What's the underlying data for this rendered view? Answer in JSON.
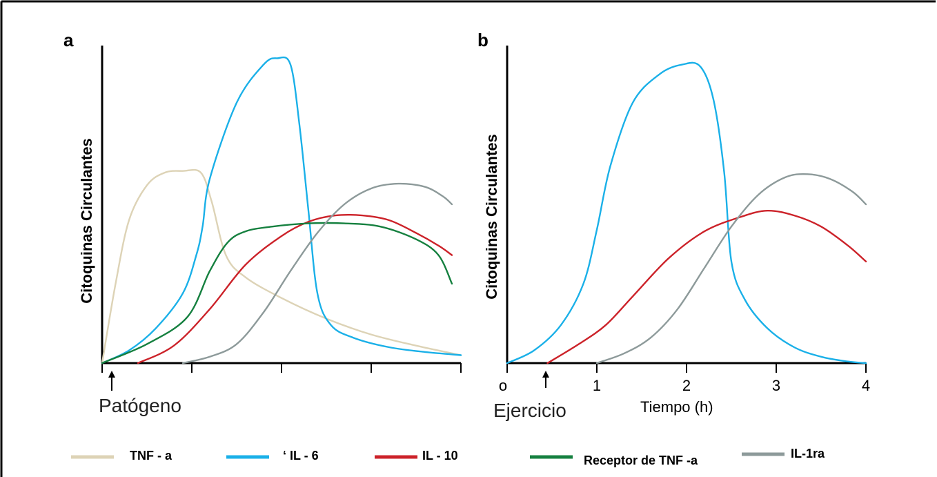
{
  "colors": {
    "TNF": "#ddd3b6",
    "IL6": "#1ab0e8",
    "IL10": "#cc2229",
    "TNFR": "#15803f",
    "IL1ra": "#8d9a9a"
  },
  "legend": [
    {
      "key": "TNF",
      "label": "TNF - a"
    },
    {
      "key": "IL6",
      "label": "‘ IL - 6"
    },
    {
      "key": "IL10",
      "label": "IL - 10"
    },
    {
      "key": "TNFR",
      "label": "Receptor de TNF -a"
    },
    {
      "key": "IL1ra",
      "label": "IL-1ra"
    }
  ],
  "chart_data": [
    {
      "type": "line",
      "panel": "a",
      "ylabel": "Citoquinas Circulantes",
      "xlabel": "",
      "annotation": "Patógeno",
      "xlim": [
        0,
        4
      ],
      "ylim": [
        0,
        100
      ],
      "x_ticks": [
        0,
        1,
        2,
        3,
        4
      ],
      "x_tick_labels": [],
      "series": [
        {
          "key": "TNF",
          "name": "TNF - a",
          "points": [
            [
              0,
              0
            ],
            [
              0.15,
              25
            ],
            [
              0.3,
              45
            ],
            [
              0.5,
              56
            ],
            [
              0.7,
              60
            ],
            [
              0.9,
              60.5
            ],
            [
              1.1,
              60
            ],
            [
              1.22,
              51
            ],
            [
              1.38,
              34
            ],
            [
              1.6,
              27
            ],
            [
              2.0,
              20.5
            ],
            [
              2.5,
              14
            ],
            [
              3.0,
              9
            ],
            [
              3.5,
              5.5
            ],
            [
              4.0,
              2.5
            ]
          ]
        },
        {
          "key": "IL6",
          "name": "IL - 6",
          "points": [
            [
              0,
              0
            ],
            [
              0.3,
              4
            ],
            [
              0.6,
              11
            ],
            [
              0.9,
              22
            ],
            [
              1.05,
              34
            ],
            [
              1.12,
              43
            ],
            [
              1.2,
              58
            ],
            [
              1.5,
              82
            ],
            [
              1.8,
              94
            ],
            [
              1.95,
              96
            ],
            [
              2.1,
              94
            ],
            [
              2.2,
              75
            ],
            [
              2.3,
              48
            ],
            [
              2.4,
              22
            ],
            [
              2.55,
              12
            ],
            [
              2.8,
              8
            ],
            [
              3.2,
              5
            ],
            [
              3.6,
              3.5
            ],
            [
              4.0,
              2.5
            ]
          ]
        },
        {
          "key": "IL10",
          "name": "IL - 10",
          "points": [
            [
              0.4,
              0
            ],
            [
              0.8,
              5.5
            ],
            [
              1.2,
              17
            ],
            [
              1.6,
              31
            ],
            [
              2.0,
              40
            ],
            [
              2.3,
              44.5
            ],
            [
              2.6,
              46.5
            ],
            [
              2.9,
              46.5
            ],
            [
              3.2,
              45
            ],
            [
              3.5,
              41
            ],
            [
              3.75,
              37
            ],
            [
              3.9,
              34
            ]
          ]
        },
        {
          "key": "TNFR",
          "name": "Receptor de TNF -a",
          "points": [
            [
              0,
              0
            ],
            [
              0.5,
              6
            ],
            [
              0.95,
              14.5
            ],
            [
              1.2,
              29
            ],
            [
              1.4,
              38
            ],
            [
              1.6,
              41.5
            ],
            [
              1.9,
              43
            ],
            [
              2.3,
              44
            ],
            [
              2.7,
              44
            ],
            [
              3.1,
              43
            ],
            [
              3.5,
              39
            ],
            [
              3.75,
              34
            ],
            [
              3.9,
              25
            ]
          ]
        },
        {
          "key": "IL1ra",
          "name": "IL-1ra",
          "points": [
            [
              0.9,
              0
            ],
            [
              1.2,
              2
            ],
            [
              1.5,
              6
            ],
            [
              1.8,
              16
            ],
            [
              2.1,
              29
            ],
            [
              2.4,
              41
            ],
            [
              2.7,
              50
            ],
            [
              3.0,
              55
            ],
            [
              3.3,
              56.5
            ],
            [
              3.6,
              55.5
            ],
            [
              3.8,
              52.5
            ],
            [
              3.9,
              50
            ]
          ]
        }
      ]
    },
    {
      "type": "line",
      "panel": "b",
      "ylabel": "Citoquinas Circulantes",
      "xlabel": "Tiempo (h)",
      "annotation": "Ejercicio",
      "xlim": [
        0,
        4
      ],
      "ylim": [
        0,
        100
      ],
      "x_ticks": [
        0,
        1,
        2,
        3,
        4
      ],
      "x_tick_labels": [
        "o",
        "1",
        "2",
        "3",
        "4"
      ],
      "series": [
        {
          "key": "IL6",
          "name": "IL - 6",
          "points": [
            [
              0,
              0
            ],
            [
              0.3,
              4
            ],
            [
              0.6,
              12
            ],
            [
              0.85,
              25
            ],
            [
              1.0,
              42
            ],
            [
              1.15,
              62
            ],
            [
              1.4,
              82
            ],
            [
              1.7,
              91
            ],
            [
              1.95,
              94
            ],
            [
              2.15,
              93.5
            ],
            [
              2.3,
              83
            ],
            [
              2.42,
              60
            ],
            [
              2.5,
              32
            ],
            [
              2.65,
              20
            ],
            [
              2.9,
              11
            ],
            [
              3.2,
              5
            ],
            [
              3.5,
              2
            ],
            [
              3.8,
              0.5
            ],
            [
              4.0,
              0
            ]
          ]
        },
        {
          "key": "IL10",
          "name": "IL - 10",
          "points": [
            [
              0.45,
              0
            ],
            [
              0.8,
              6
            ],
            [
              1.1,
              12
            ],
            [
              1.4,
              21
            ],
            [
              1.8,
              33
            ],
            [
              2.2,
              41.5
            ],
            [
              2.6,
              46
            ],
            [
              2.9,
              48
            ],
            [
              3.2,
              46.5
            ],
            [
              3.5,
              43
            ],
            [
              3.8,
              37
            ],
            [
              4.0,
              32
            ]
          ]
        },
        {
          "key": "IL1ra",
          "name": "IL-1ra",
          "points": [
            [
              1.0,
              0
            ],
            [
              1.3,
              3
            ],
            [
              1.6,
              8
            ],
            [
              1.9,
              17
            ],
            [
              2.2,
              30
            ],
            [
              2.5,
              43
            ],
            [
              2.8,
              53
            ],
            [
              3.1,
              58.5
            ],
            [
              3.35,
              59.5
            ],
            [
              3.6,
              58
            ],
            [
              3.85,
              54
            ],
            [
              4.0,
              50
            ]
          ]
        }
      ]
    }
  ]
}
